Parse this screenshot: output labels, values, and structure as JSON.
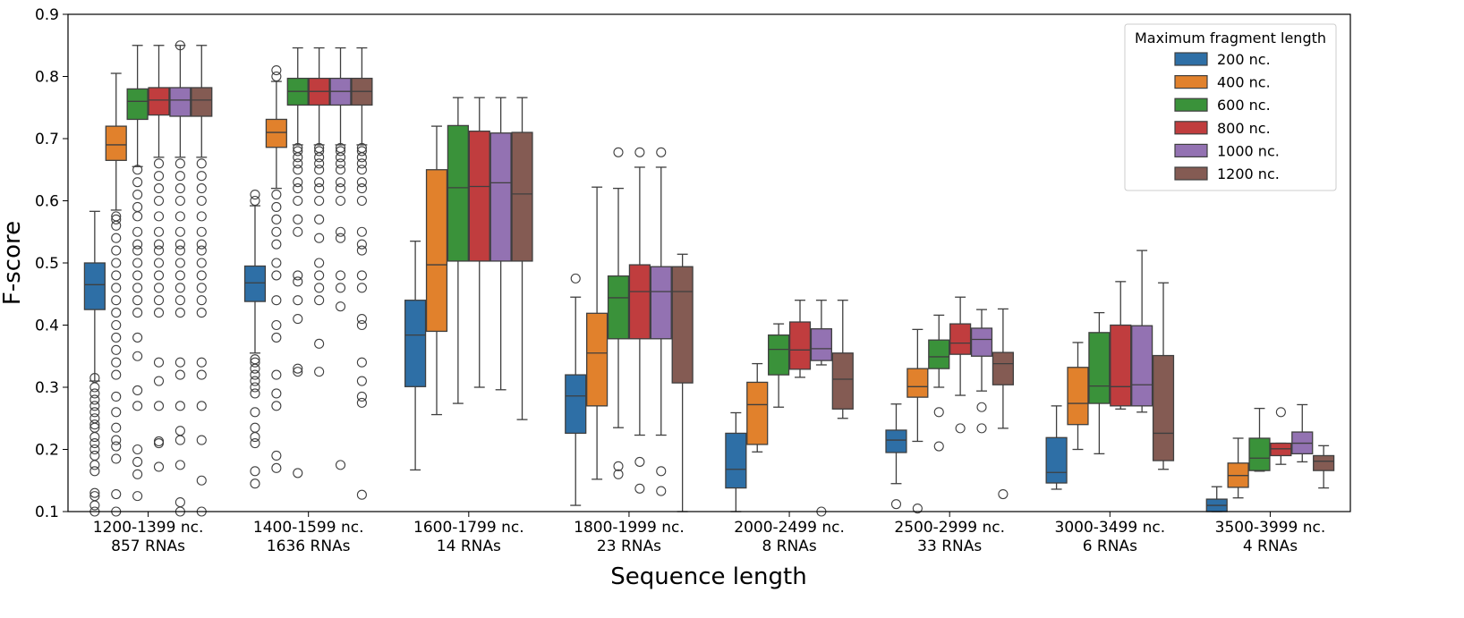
{
  "chart_data": {
    "type": "box",
    "xlabel": "Sequence length",
    "ylabel": "F-score",
    "ylim": [
      0.1,
      0.9
    ],
    "yticks": [
      "0.1",
      "0.2",
      "0.3",
      "0.4",
      "0.5",
      "0.6",
      "0.7",
      "0.8",
      "0.9"
    ],
    "legend": {
      "title": "Maximum fragment length",
      "placement": "top-right"
    },
    "categories": [
      {
        "line1": "1200-1399 nc.",
        "line2": "857 RNAs"
      },
      {
        "line1": "1400-1599 nc.",
        "line2": "1636 RNAs"
      },
      {
        "line1": "1600-1799 nc.",
        "line2": "14 RNAs"
      },
      {
        "line1": "1800-1999 nc.",
        "line2": "23 RNAs"
      },
      {
        "line1": "2000-2499 nc.",
        "line2": "8 RNAs"
      },
      {
        "line1": "2500-2999 nc.",
        "line2": "33 RNAs"
      },
      {
        "line1": "3000-3499 nc.",
        "line2": "6 RNAs"
      },
      {
        "line1": "3500-3999 nc.",
        "line2": "4 RNAs"
      }
    ],
    "series": [
      {
        "name": "200 nc.",
        "color": "#2e6fa6",
        "boxes": [
          {
            "whislo": 0.31,
            "q1": 0.425,
            "med": 0.465,
            "q3": 0.5,
            "whishi": 0.583,
            "fliers": [
              0.1,
              0.11,
              0.125,
              0.13,
              0.165,
              0.175,
              0.19,
              0.2,
              0.21,
              0.22,
              0.235,
              0.24,
              0.25,
              0.26,
              0.27,
              0.28,
              0.29,
              0.3,
              0.315
            ]
          },
          {
            "whislo": 0.355,
            "q1": 0.438,
            "med": 0.468,
            "q3": 0.495,
            "whishi": 0.592,
            "fliers": [
              0.145,
              0.165,
              0.21,
              0.22,
              0.235,
              0.26,
              0.29,
              0.3,
              0.31,
              0.32,
              0.33,
              0.34,
              0.345,
              0.6,
              0.61
            ]
          },
          {
            "whislo": 0.167,
            "q1": 0.301,
            "med": 0.384,
            "q3": 0.44,
            "whishi": 0.535,
            "fliers": []
          },
          {
            "whislo": 0.11,
            "q1": 0.226,
            "med": 0.286,
            "q3": 0.32,
            "whishi": 0.445,
            "fliers": [
              0.475
            ]
          },
          {
            "whislo": 0.1,
            "q1": 0.138,
            "med": 0.168,
            "q3": 0.226,
            "whishi": 0.259,
            "fliers": []
          },
          {
            "whislo": 0.145,
            "q1": 0.195,
            "med": 0.215,
            "q3": 0.231,
            "whishi": 0.273,
            "fliers": [
              0.112
            ]
          },
          {
            "whislo": 0.136,
            "q1": 0.146,
            "med": 0.163,
            "q3": 0.219,
            "whishi": 0.27,
            "fliers": []
          },
          {
            "whislo": 0.1,
            "q1": 0.1,
            "med": 0.11,
            "q3": 0.12,
            "whishi": 0.14,
            "fliers": []
          }
        ]
      },
      {
        "name": "400 nc.",
        "color": "#e1812c",
        "boxes": [
          {
            "whislo": 0.585,
            "q1": 0.665,
            "med": 0.69,
            "q3": 0.72,
            "whishi": 0.805,
            "fliers": [
              0.1,
              0.128,
              0.185,
              0.205,
              0.215,
              0.235,
              0.26,
              0.285,
              0.32,
              0.34,
              0.36,
              0.38,
              0.4,
              0.42,
              0.44,
              0.46,
              0.48,
              0.5,
              0.52,
              0.54,
              0.56,
              0.57,
              0.575
            ]
          },
          {
            "whislo": 0.62,
            "q1": 0.686,
            "med": 0.71,
            "q3": 0.731,
            "whishi": 0.792,
            "fliers": [
              0.17,
              0.19,
              0.27,
              0.29,
              0.32,
              0.38,
              0.4,
              0.44,
              0.48,
              0.5,
              0.53,
              0.55,
              0.57,
              0.59,
              0.61,
              0.8,
              0.81
            ]
          },
          {
            "whislo": 0.256,
            "q1": 0.39,
            "med": 0.497,
            "q3": 0.65,
            "whishi": 0.72,
            "fliers": []
          },
          {
            "whislo": 0.152,
            "q1": 0.27,
            "med": 0.355,
            "q3": 0.419,
            "whishi": 0.622,
            "fliers": []
          },
          {
            "whislo": 0.196,
            "q1": 0.208,
            "med": 0.272,
            "q3": 0.308,
            "whishi": 0.338,
            "fliers": []
          },
          {
            "whislo": 0.213,
            "q1": 0.284,
            "med": 0.301,
            "q3": 0.33,
            "whishi": 0.393,
            "fliers": [
              0.105
            ]
          },
          {
            "whislo": 0.2,
            "q1": 0.24,
            "med": 0.274,
            "q3": 0.332,
            "whishi": 0.372,
            "fliers": []
          },
          {
            "whislo": 0.122,
            "q1": 0.139,
            "med": 0.158,
            "q3": 0.178,
            "whishi": 0.218,
            "fliers": []
          }
        ]
      },
      {
        "name": "600 nc.",
        "color": "#3a923a",
        "boxes": [
          {
            "whislo": 0.655,
            "q1": 0.731,
            "med": 0.76,
            "q3": 0.78,
            "whishi": 0.85,
            "fliers": [
              0.125,
              0.16,
              0.18,
              0.2,
              0.27,
              0.295,
              0.35,
              0.38,
              0.42,
              0.44,
              0.46,
              0.48,
              0.5,
              0.52,
              0.53,
              0.55,
              0.575,
              0.59,
              0.61,
              0.63,
              0.65
            ]
          },
          {
            "whislo": 0.69,
            "q1": 0.754,
            "med": 0.776,
            "q3": 0.797,
            "whishi": 0.846,
            "fliers": [
              0.162,
              0.325,
              0.33,
              0.41,
              0.44,
              0.47,
              0.48,
              0.55,
              0.57,
              0.6,
              0.62,
              0.63,
              0.65,
              0.66,
              0.67,
              0.68,
              0.685
            ]
          },
          {
            "whislo": 0.274,
            "q1": 0.503,
            "med": 0.621,
            "q3": 0.721,
            "whishi": 0.766,
            "fliers": []
          },
          {
            "whislo": 0.235,
            "q1": 0.378,
            "med": 0.444,
            "q3": 0.479,
            "whishi": 0.62,
            "fliers": [
              0.16,
              0.173,
              0.678
            ]
          },
          {
            "whislo": 0.268,
            "q1": 0.32,
            "med": 0.361,
            "q3": 0.384,
            "whishi": 0.402,
            "fliers": []
          },
          {
            "whislo": 0.3,
            "q1": 0.33,
            "med": 0.349,
            "q3": 0.376,
            "whishi": 0.416,
            "fliers": [
              0.205,
              0.26
            ]
          },
          {
            "whislo": 0.193,
            "q1": 0.274,
            "med": 0.302,
            "q3": 0.388,
            "whishi": 0.42,
            "fliers": []
          },
          {
            "whislo": 0.165,
            "q1": 0.166,
            "med": 0.186,
            "q3": 0.218,
            "whishi": 0.266,
            "fliers": []
          }
        ]
      },
      {
        "name": "800 nc.",
        "color": "#c03d3e",
        "boxes": [
          {
            "whislo": 0.67,
            "q1": 0.738,
            "med": 0.762,
            "q3": 0.782,
            "whishi": 0.85,
            "fliers": [
              0.172,
              0.21,
              0.213,
              0.27,
              0.31,
              0.34,
              0.42,
              0.44,
              0.46,
              0.48,
              0.5,
              0.52,
              0.53,
              0.55,
              0.575,
              0.6,
              0.62,
              0.64,
              0.66
            ]
          },
          {
            "whislo": 0.69,
            "q1": 0.754,
            "med": 0.776,
            "q3": 0.797,
            "whishi": 0.846,
            "fliers": [
              0.325,
              0.37,
              0.44,
              0.46,
              0.48,
              0.5,
              0.54,
              0.57,
              0.6,
              0.62,
              0.63,
              0.65,
              0.66,
              0.67,
              0.68,
              0.685
            ]
          },
          {
            "whislo": 0.3,
            "q1": 0.503,
            "med": 0.623,
            "q3": 0.712,
            "whishi": 0.766,
            "fliers": []
          },
          {
            "whislo": 0.223,
            "q1": 0.378,
            "med": 0.454,
            "q3": 0.497,
            "whishi": 0.654,
            "fliers": [
              0.137,
              0.18,
              0.678
            ]
          },
          {
            "whislo": 0.316,
            "q1": 0.329,
            "med": 0.36,
            "q3": 0.405,
            "whishi": 0.44,
            "fliers": []
          },
          {
            "whislo": 0.287,
            "q1": 0.353,
            "med": 0.371,
            "q3": 0.402,
            "whishi": 0.445,
            "fliers": [
              0.234
            ]
          },
          {
            "whislo": 0.265,
            "q1": 0.27,
            "med": 0.301,
            "q3": 0.4,
            "whishi": 0.47,
            "fliers": []
          },
          {
            "whislo": 0.176,
            "q1": 0.19,
            "med": 0.201,
            "q3": 0.21,
            "whishi": 0.21,
            "fliers": [
              0.26
            ]
          }
        ]
      },
      {
        "name": "1000 nc.",
        "color": "#9372b2",
        "boxes": [
          {
            "whislo": 0.67,
            "q1": 0.736,
            "med": 0.762,
            "q3": 0.782,
            "whishi": 0.85,
            "fliers": [
              0.1,
              0.115,
              0.175,
              0.215,
              0.23,
              0.27,
              0.32,
              0.34,
              0.42,
              0.44,
              0.46,
              0.48,
              0.5,
              0.52,
              0.53,
              0.55,
              0.575,
              0.6,
              0.62,
              0.64,
              0.66,
              0.85
            ]
          },
          {
            "whislo": 0.69,
            "q1": 0.754,
            "med": 0.776,
            "q3": 0.797,
            "whishi": 0.846,
            "fliers": [
              0.175,
              0.43,
              0.46,
              0.48,
              0.54,
              0.55,
              0.6,
              0.62,
              0.63,
              0.65,
              0.66,
              0.67,
              0.68,
              0.685
            ]
          },
          {
            "whislo": 0.296,
            "q1": 0.503,
            "med": 0.629,
            "q3": 0.709,
            "whishi": 0.766,
            "fliers": []
          },
          {
            "whislo": 0.223,
            "q1": 0.378,
            "med": 0.454,
            "q3": 0.494,
            "whishi": 0.654,
            "fliers": [
              0.133,
              0.165,
              0.678
            ]
          },
          {
            "whislo": 0.336,
            "q1": 0.343,
            "med": 0.362,
            "q3": 0.394,
            "whishi": 0.44,
            "fliers": [
              0.1
            ]
          },
          {
            "whislo": 0.294,
            "q1": 0.35,
            "med": 0.377,
            "q3": 0.395,
            "whishi": 0.425,
            "fliers": [
              0.234,
              0.268
            ]
          },
          {
            "whislo": 0.26,
            "q1": 0.27,
            "med": 0.304,
            "q3": 0.399,
            "whishi": 0.52,
            "fliers": []
          },
          {
            "whislo": 0.18,
            "q1": 0.193,
            "med": 0.21,
            "q3": 0.228,
            "whishi": 0.272,
            "fliers": []
          }
        ]
      },
      {
        "name": "1200 nc.",
        "color": "#845b53",
        "boxes": [
          {
            "whislo": 0.67,
            "q1": 0.736,
            "med": 0.762,
            "q3": 0.782,
            "whishi": 0.85,
            "fliers": [
              0.1,
              0.15,
              0.215,
              0.27,
              0.32,
              0.34,
              0.42,
              0.44,
              0.46,
              0.48,
              0.5,
              0.52,
              0.53,
              0.55,
              0.575,
              0.6,
              0.62,
              0.64,
              0.66
            ]
          },
          {
            "whislo": 0.69,
            "q1": 0.754,
            "med": 0.776,
            "q3": 0.797,
            "whishi": 0.846,
            "fliers": [
              0.127,
              0.275,
              0.285,
              0.31,
              0.34,
              0.4,
              0.41,
              0.46,
              0.48,
              0.52,
              0.53,
              0.55,
              0.6,
              0.62,
              0.63,
              0.65,
              0.66,
              0.67,
              0.68,
              0.685
            ]
          },
          {
            "whislo": 0.248,
            "q1": 0.503,
            "med": 0.611,
            "q3": 0.71,
            "whishi": 0.766,
            "fliers": []
          },
          {
            "whislo": 0.1,
            "q1": 0.307,
            "med": 0.454,
            "q3": 0.494,
            "whishi": 0.514,
            "fliers": []
          },
          {
            "whislo": 0.25,
            "q1": 0.265,
            "med": 0.313,
            "q3": 0.355,
            "whishi": 0.44,
            "fliers": []
          },
          {
            "whislo": 0.234,
            "q1": 0.304,
            "med": 0.338,
            "q3": 0.356,
            "whishi": 0.426,
            "fliers": [
              0.128
            ]
          },
          {
            "whislo": 0.168,
            "q1": 0.182,
            "med": 0.226,
            "q3": 0.351,
            "whishi": 0.468,
            "fliers": []
          },
          {
            "whislo": 0.138,
            "q1": 0.166,
            "med": 0.181,
            "q3": 0.19,
            "whishi": 0.206,
            "fliers": []
          }
        ]
      }
    ]
  }
}
